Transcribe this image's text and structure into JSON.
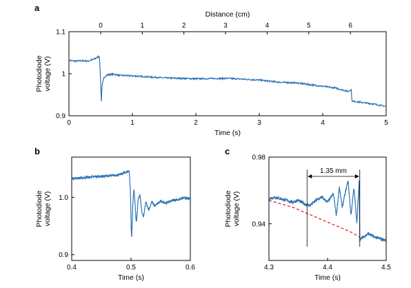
{
  "colors": {
    "signal": "#2c72b6",
    "fit": "#e02020",
    "axes": "#000000"
  },
  "chart_data": [
    {
      "panel": "a",
      "type": "line",
      "xlabel": "Time (s)",
      "ylabel": [
        "Photodiode",
        "voltage (V)"
      ],
      "top_xlabel": "Distance (cm)",
      "xlim": [
        0,
        5
      ],
      "ylim": [
        0.9,
        1.1
      ],
      "xticks": [
        "0",
        "1",
        "2",
        "3",
        "4",
        "5"
      ],
      "yticks": [
        "0.9",
        "1",
        "1.1"
      ],
      "top_xticks": [
        "0",
        "1",
        "2",
        "3",
        "4",
        "5",
        "6"
      ],
      "top_xticks_at_time": [
        0.5,
        1.156,
        1.812,
        2.468,
        3.124,
        3.78,
        4.436
      ],
      "series": [
        {
          "x": [
            0,
            0.1,
            0.2,
            0.3,
            0.4,
            0.48,
            0.5,
            0.51,
            0.52,
            0.55,
            0.6,
            0.7,
            0.8,
            1.0,
            1.2,
            1.5,
            2.0,
            2.5,
            3.0,
            3.3,
            3.6,
            4.0,
            4.2,
            4.4,
            4.45,
            4.46,
            4.6,
            4.8,
            5.0
          ],
          "y": [
            1.032,
            1.03,
            1.031,
            1.03,
            1.035,
            1.042,
            0.98,
            0.93,
            0.97,
            0.99,
            0.997,
            0.999,
            0.996,
            0.995,
            0.993,
            0.99,
            0.988,
            0.989,
            0.985,
            0.98,
            0.978,
            0.97,
            0.966,
            0.958,
            0.962,
            0.935,
            0.932,
            0.928,
            0.922
          ]
        }
      ]
    },
    {
      "panel": "b",
      "type": "line",
      "xlabel": "Time (s)",
      "ylabel": [
        "Photodiode",
        "voltage (V)"
      ],
      "xlim": [
        0.4,
        0.6
      ],
      "ylim": [
        0.89,
        1.07
      ],
      "xticks": [
        "0.4",
        "0.5",
        "0.6"
      ],
      "yticks": [
        "0.9",
        "1.0"
      ],
      "series": [
        {
          "x": [
            0.4,
            0.42,
            0.44,
            0.46,
            0.48,
            0.497,
            0.499,
            0.5,
            0.501,
            0.503,
            0.505,
            0.507,
            0.509,
            0.512,
            0.515,
            0.518,
            0.521,
            0.525,
            0.53,
            0.535,
            0.54,
            0.55,
            0.56,
            0.57,
            0.58,
            0.59,
            0.6
          ],
          "y": [
            1.033,
            1.034,
            1.036,
            1.037,
            1.039,
            1.046,
            1.01,
            0.96,
            0.925,
            0.99,
            1.015,
            0.985,
            0.955,
            0.995,
            1.005,
            0.975,
            0.965,
            0.992,
            0.978,
            0.992,
            0.985,
            0.993,
            0.99,
            0.995,
            0.996,
            0.999,
            0.997
          ]
        }
      ]
    },
    {
      "panel": "c",
      "type": "line",
      "xlabel": "Time (s)",
      "ylabel": [
        "Photodiode",
        "voltage (V)"
      ],
      "xlim": [
        4.3,
        4.5
      ],
      "ylim": [
        0.918,
        0.98
      ],
      "xticks": [
        "4.3",
        "4.4",
        "4.5"
      ],
      "yticks": [
        "0.94",
        "0.98"
      ],
      "annotation": "1.35 mm",
      "marker_lines_x": [
        4.365,
        4.455
      ],
      "series": [
        {
          "x": [
            4.3,
            4.31,
            4.32,
            4.33,
            4.34,
            4.35,
            4.36,
            4.37,
            4.38,
            4.39,
            4.4,
            4.41,
            4.415,
            4.42,
            4.425,
            4.43,
            4.435,
            4.44,
            4.445,
            4.45,
            4.454,
            4.455,
            4.46,
            4.47,
            4.48,
            4.49,
            4.5
          ],
          "y": [
            0.955,
            0.956,
            0.955,
            0.954,
            0.953,
            0.954,
            0.952,
            0.951,
            0.954,
            0.956,
            0.953,
            0.958,
            0.945,
            0.962,
            0.95,
            0.958,
            0.966,
            0.945,
            0.962,
            0.94,
            0.967,
            0.93,
            0.932,
            0.934,
            0.932,
            0.931,
            0.93
          ]
        },
        {
          "name": "",
          "style": "dashed",
          "x": [
            4.3,
            4.32,
            4.34,
            4.36,
            4.38,
            4.4,
            4.42,
            4.44,
            4.455
          ],
          "y": [
            0.954,
            0.952,
            0.95,
            0.947,
            0.944,
            0.941,
            0.938,
            0.935,
            0.932
          ]
        }
      ]
    }
  ]
}
